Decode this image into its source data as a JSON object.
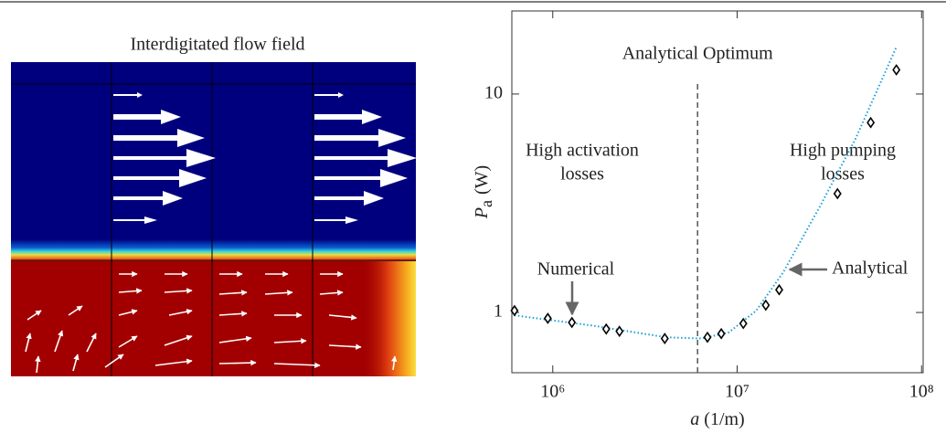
{
  "image": {
    "title": "Interdigitated flow field"
  },
  "chart_data": {
    "type": "line",
    "xlabel": {
      "symbol": "a",
      "unit": "(1/m)"
    },
    "ylabel": {
      "symbol": "P",
      "subscript": "a",
      "unit": "(W)"
    },
    "xscale": "log",
    "yscale": "log",
    "xlim": [
      600000,
      102000000
    ],
    "ylim": [
      0.53,
      24
    ],
    "xticks": [
      {
        "value": 1000000,
        "label": "10⁶"
      },
      {
        "value": 10000000,
        "label": "10⁷"
      },
      {
        "value": 100000000,
        "label": "10⁸"
      }
    ],
    "yticks": [
      1,
      10
    ],
    "series": [
      {
        "name": "Analytical",
        "color": "#1a9fd8",
        "style": "dotted",
        "x": [
          620000,
          1660000,
          4100000,
          6400000,
          9000000,
          12700000,
          17800000,
          28000000,
          43700000,
          73000000
        ],
        "values": [
          0.97,
          0.87,
          0.77,
          0.76,
          0.81,
          1.02,
          1.53,
          3.04,
          6.2,
          16.4
        ]
      },
      {
        "name": "Numerical",
        "color": "#000000",
        "marker": "diamond",
        "x": [
          620000,
          940000,
          1270000,
          1950000,
          2300000,
          4050000,
          6900000,
          8200000,
          10800000,
          14300000,
          16900000,
          35000000,
          53000000,
          73000000
        ],
        "values": [
          1.02,
          0.94,
          0.9,
          0.84,
          0.82,
          0.76,
          0.77,
          0.8,
          0.89,
          1.08,
          1.27,
          3.5,
          7.4,
          12.9
        ]
      }
    ],
    "optimum": {
      "x": 6100000,
      "label": "Analytical Optimum"
    },
    "annotations": [
      "High activation",
      "losses",
      "High pumping",
      "losses"
    ]
  }
}
